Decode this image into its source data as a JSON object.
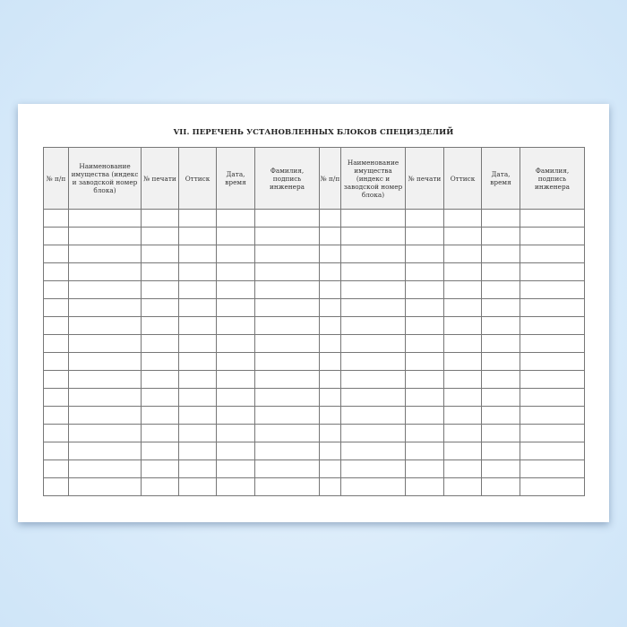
{
  "title": "VII. ПЕРЕЧЕНЬ УСТАНОВЛЕННЫХ БЛОКОВ СПЕЦИЗДЕЛИЙ",
  "columns": [
    "№ п/п",
    "Наименование имущества (индекс и заводской номер блока)",
    "№ печати",
    "Оттиск",
    "Дата, время",
    "Фамилия, подпись инженера",
    "№ п/п",
    "Наименование имущества (индекс и заводской номер блока)",
    "№ печати",
    "Оттиск",
    "Дата, время",
    "Фамилия, подпись инженера"
  ],
  "empty_rows": 16
}
